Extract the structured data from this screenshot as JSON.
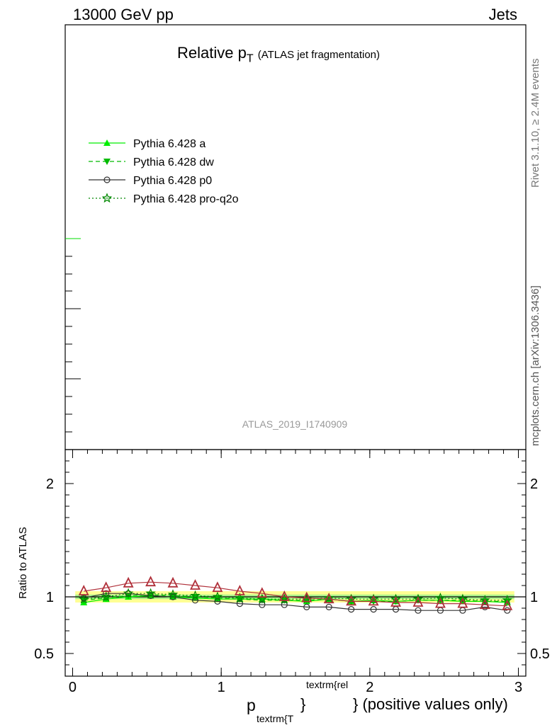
{
  "header": {
    "left": "13000 GeV pp",
    "right": "Jets"
  },
  "title": {
    "main": "Relative p",
    "sub": "T",
    "paren": "(ATLAS jet fragmentation)"
  },
  "side": {
    "rivet": "Rivet 3.1.10, ≥ 2.4M events",
    "mcplots": "mcplots.cern.ch [arXiv:1306.3436]"
  },
  "watermark": "ATLAS_2019_I1740909",
  "ratio_ylabel": "Ratio to ATLAS",
  "xlabel": {
    "p": "p",
    "sub": "textrm{T",
    "sup": "textrm{rel",
    "brace": "}",
    "rest": "} (positive values only)"
  },
  "legend": [
    {
      "label": "Pythia 6.428 a",
      "color": "#00ee00",
      "marker": "triangle-up",
      "dash": "solid"
    },
    {
      "label": "Pythia 6.428 dw",
      "color": "#00bb00",
      "marker": "triangle-down",
      "dash": "dashed"
    },
    {
      "label": "Pythia 6.428 p0",
      "color": "#333333",
      "marker": "circle-open",
      "dash": "solid"
    },
    {
      "label": "Pythia 6.428 pro-q2o",
      "color": "#008800",
      "marker": "star",
      "dash": "dotted"
    }
  ],
  "chart_data": {
    "type": "line",
    "xlim": [
      -0.05,
      3.05
    ],
    "ratio_ylim": [
      0.3,
      2.3
    ],
    "x_ticks": [
      "0",
      "1",
      "2",
      "3"
    ],
    "x_tick_values": [
      0,
      1,
      2,
      3
    ],
    "y_ticks": [
      "0.5",
      "1",
      "2"
    ],
    "y_tick_values": [
      0.5,
      1,
      2
    ],
    "x": [
      0.075,
      0.225,
      0.375,
      0.525,
      0.675,
      0.825,
      0.975,
      1.125,
      1.275,
      1.425,
      1.575,
      1.725,
      1.875,
      2.025,
      2.175,
      2.325,
      2.475,
      2.625,
      2.775,
      2.925
    ],
    "reference": {
      "name": "ATLAS",
      "values": [
        1.05,
        1.08,
        1.12,
        1.13,
        1.12,
        1.1,
        1.08,
        1.05,
        1.03,
        1.0,
        0.99,
        0.98,
        0.96,
        0.96,
        0.95,
        0.95,
        0.94,
        0.94,
        0.93,
        0.92
      ],
      "band_inner": 0.02,
      "band_outer": 0.05
    },
    "series": [
      {
        "name": "Pythia 6.428 a",
        "values": [
          0.95,
          0.98,
          1.0,
          1.01,
          1.0,
          0.99,
          0.98,
          0.98,
          0.98,
          0.97,
          0.96,
          0.98,
          0.96,
          0.97,
          0.96,
          0.97,
          0.97,
          0.96,
          0.96,
          0.95
        ]
      },
      {
        "name": "Pythia 6.428 dw",
        "values": [
          0.97,
          0.99,
          1.01,
          1.02,
          1.01,
          1.0,
          0.99,
          0.98,
          0.97,
          0.97,
          0.97,
          0.98,
          0.96,
          0.96,
          0.96,
          0.97,
          0.97,
          0.97,
          0.96,
          0.96
        ]
      },
      {
        "name": "Pythia 6.428 p0",
        "values": [
          0.99,
          1.03,
          1.03,
          1.01,
          1.0,
          0.97,
          0.96,
          0.94,
          0.93,
          0.93,
          0.91,
          0.91,
          0.89,
          0.89,
          0.89,
          0.88,
          0.88,
          0.88,
          0.91,
          0.88
        ]
      },
      {
        "name": "Pythia 6.428 pro-q2o",
        "values": [
          0.98,
          1.0,
          1.03,
          1.03,
          1.02,
          1.01,
          1.0,
          0.99,
          0.98,
          0.98,
          0.98,
          0.99,
          0.98,
          0.98,
          0.98,
          0.98,
          0.99,
          0.98,
          0.97,
          0.97
        ]
      }
    ]
  }
}
